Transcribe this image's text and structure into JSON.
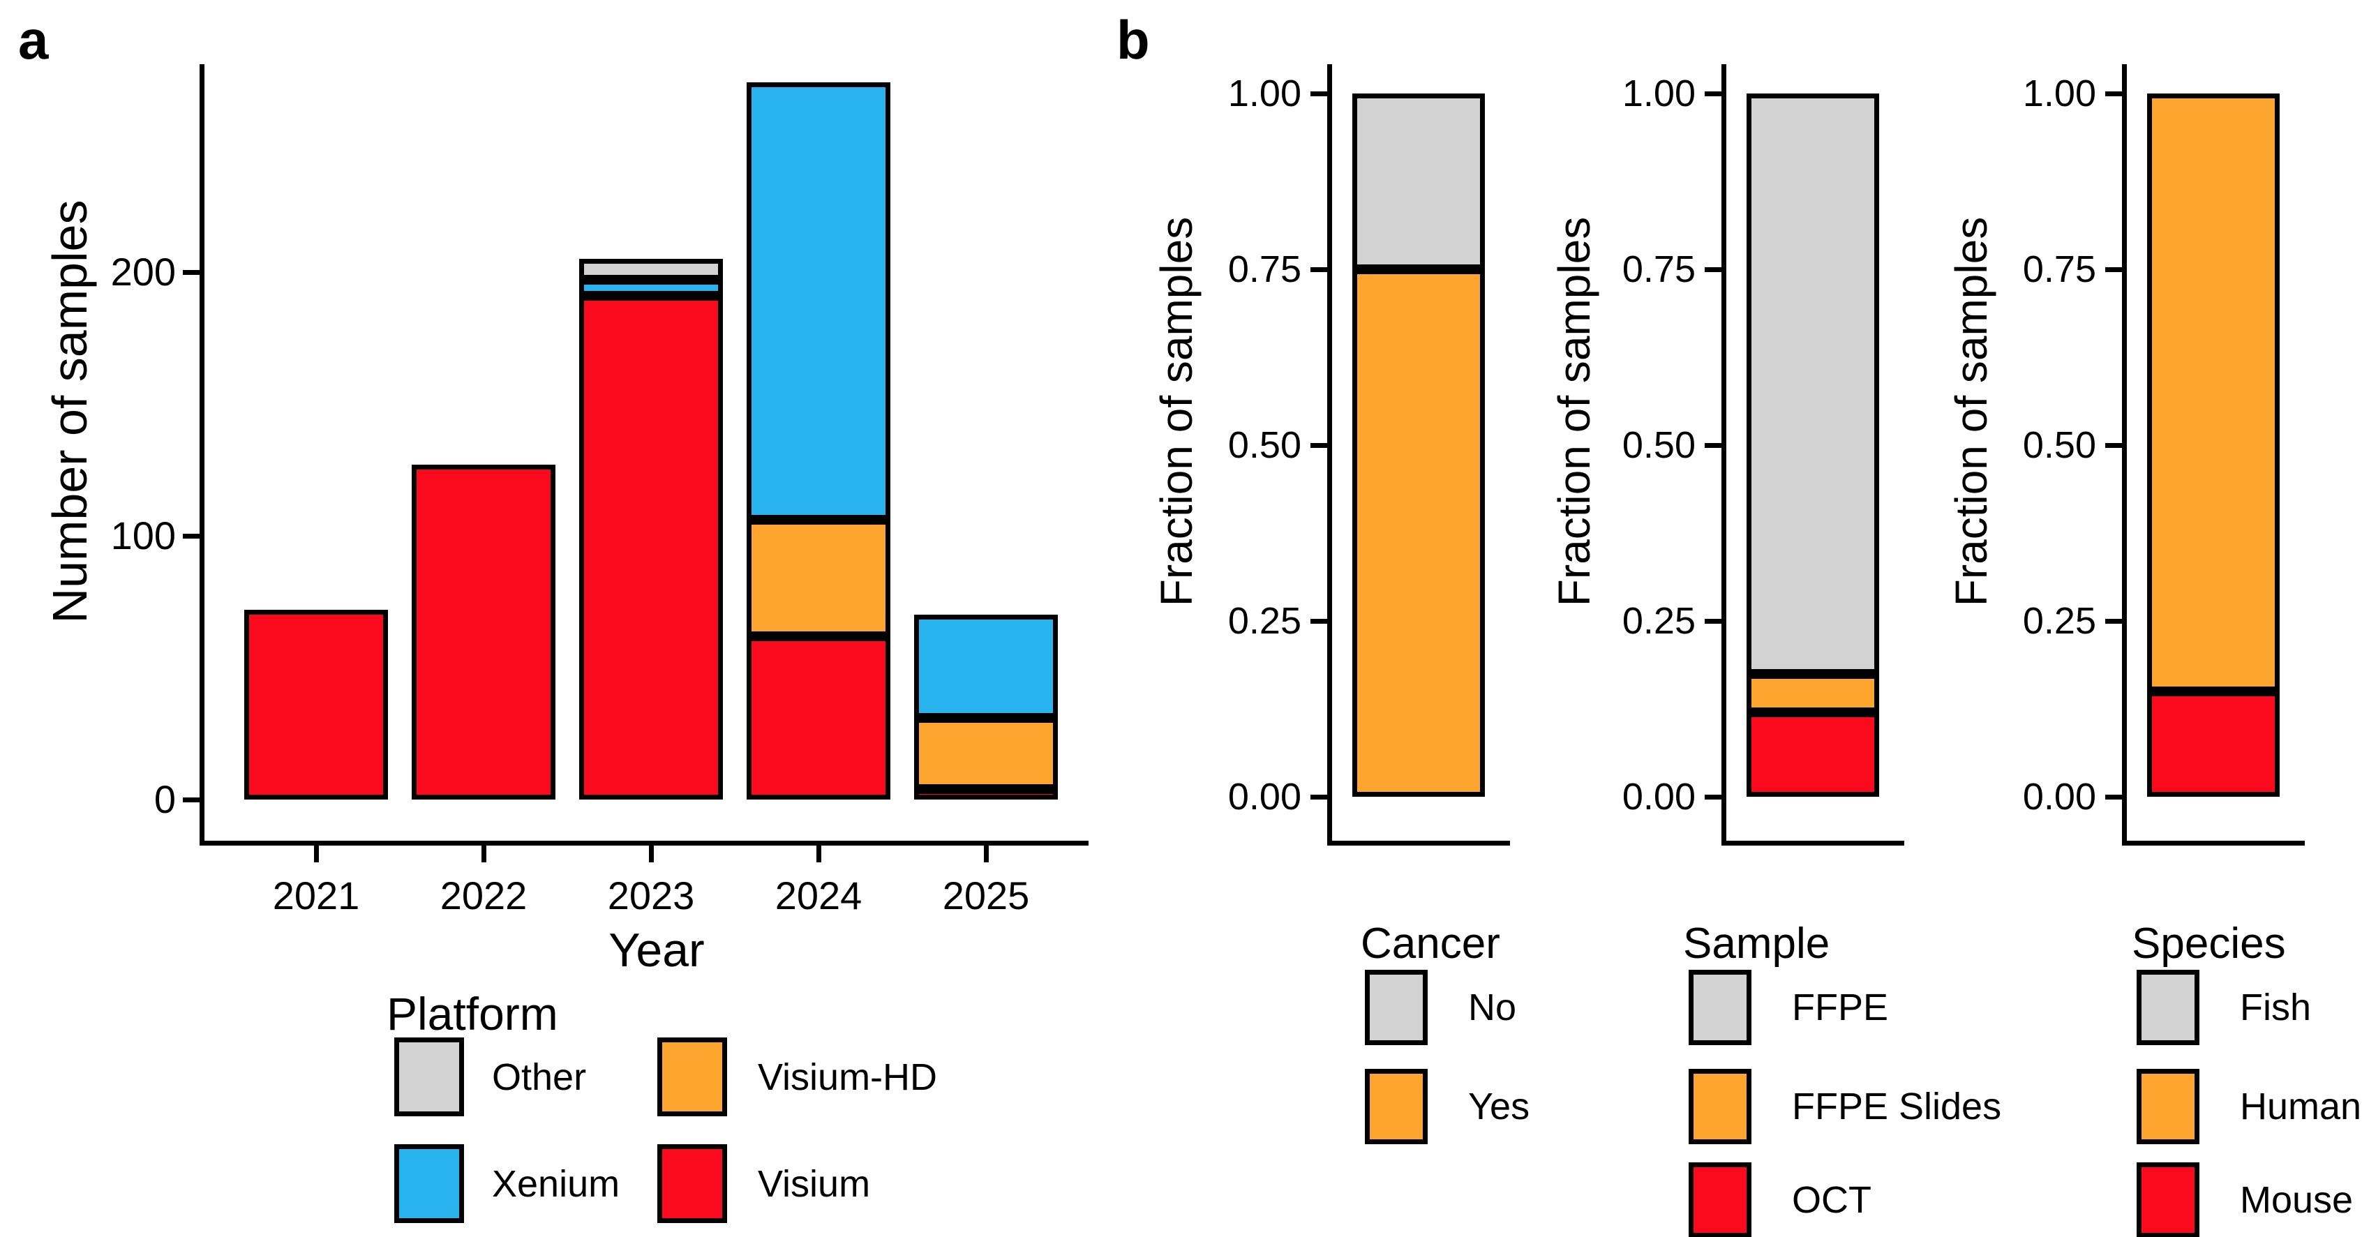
{
  "colors": {
    "red": "#FB0A1E",
    "orange": "#FDA52F",
    "blue": "#29B3EE",
    "gray": "#D2D2D2",
    "outline": "#000000",
    "background": "#FFFFFF"
  },
  "panel_a": {
    "label": "a",
    "y_axis_title": "Number of samples",
    "x_axis_title": "Year",
    "y_ticks": [
      "0",
      "100",
      "200"
    ],
    "x_ticks": [
      "2021",
      "2022",
      "2023",
      "2024",
      "2025"
    ],
    "legend": {
      "title": "Platform",
      "items": [
        {
          "label": "Other",
          "color": "gray"
        },
        {
          "label": "Visium-HD",
          "color": "orange"
        },
        {
          "label": "Xenium",
          "color": "blue"
        },
        {
          "label": "Visium",
          "color": "red"
        }
      ]
    }
  },
  "panel_b": {
    "label": "b",
    "y_axis_title": "Fraction of samples",
    "y_ticks": [
      "0.00",
      "0.25",
      "0.50",
      "0.75",
      "1.00"
    ],
    "plots": [
      {
        "name": "cancer",
        "legend_title": "Cancer",
        "legend": [
          {
            "label": "No",
            "color": "gray"
          },
          {
            "label": "Yes",
            "color": "orange"
          }
        ]
      },
      {
        "name": "sample",
        "legend_title": "Sample",
        "legend": [
          {
            "label": "FFPE",
            "color": "gray"
          },
          {
            "label": "FFPE Slides",
            "color": "orange"
          },
          {
            "label": "OCT",
            "color": "red"
          }
        ]
      },
      {
        "name": "species",
        "legend_title": "Species",
        "legend": [
          {
            "label": "Fish",
            "color": "gray"
          },
          {
            "label": "Human",
            "color": "orange"
          },
          {
            "label": "Mouse",
            "color": "red"
          }
        ]
      }
    ]
  },
  "chart_data": [
    {
      "type": "bar",
      "stacked": true,
      "title": "",
      "categories": [
        "2021",
        "2022",
        "2023",
        "2024",
        "2025"
      ],
      "series": [
        {
          "name": "Visium",
          "color_key": "red",
          "values": [
            72,
            127,
            191,
            62,
            4
          ]
        },
        {
          "name": "Visium-HD",
          "color_key": "orange",
          "values": [
            0,
            0,
            0,
            44,
            27
          ]
        },
        {
          "name": "Xenium",
          "color_key": "blue",
          "values": [
            0,
            0,
            6,
            166,
            39
          ]
        },
        {
          "name": "Other",
          "color_key": "gray",
          "values": [
            0,
            0,
            8,
            0,
            0
          ]
        }
      ],
      "xlabel": "Year",
      "ylabel": "Number of samples",
      "ylim": [
        0,
        280
      ],
      "yticks": [
        0,
        100,
        200
      ],
      "grid": false,
      "legend_title": "Platform",
      "legend_position": "bottom"
    },
    {
      "type": "bar",
      "stacked": true,
      "title": "",
      "categories": [
        "Cancer"
      ],
      "series": [
        {
          "name": "Yes",
          "color_key": "orange",
          "values": [
            0.75
          ]
        },
        {
          "name": "No",
          "color_key": "gray",
          "values": [
            0.25
          ]
        }
      ],
      "xlabel": "",
      "ylabel": "Fraction of samples",
      "ylim": [
        0,
        1
      ],
      "yticks": [
        0,
        0.25,
        0.5,
        0.75,
        1.0
      ],
      "grid": false,
      "legend_title": "Cancer",
      "legend_position": "bottom"
    },
    {
      "type": "bar",
      "stacked": true,
      "title": "",
      "categories": [
        "Sample"
      ],
      "series": [
        {
          "name": "OCT",
          "color_key": "red",
          "values": [
            0.12
          ]
        },
        {
          "name": "FFPE Slides",
          "color_key": "orange",
          "values": [
            0.055
          ]
        },
        {
          "name": "FFPE",
          "color_key": "gray",
          "values": [
            0.825
          ]
        }
      ],
      "xlabel": "",
      "ylabel": "Fraction of samples",
      "ylim": [
        0,
        1
      ],
      "yticks": [
        0,
        0.25,
        0.5,
        0.75,
        1.0
      ],
      "grid": false,
      "legend_title": "Sample",
      "legend_position": "bottom"
    },
    {
      "type": "bar",
      "stacked": true,
      "title": "",
      "categories": [
        "Species"
      ],
      "series": [
        {
          "name": "Mouse",
          "color_key": "red",
          "values": [
            0.15
          ]
        },
        {
          "name": "Human",
          "color_key": "orange",
          "values": [
            0.85
          ]
        },
        {
          "name": "Fish",
          "color_key": "gray",
          "values": [
            0.0
          ]
        }
      ],
      "xlabel": "",
      "ylabel": "Fraction of samples",
      "ylim": [
        0,
        1
      ],
      "yticks": [
        0,
        0.25,
        0.5,
        0.75,
        1.0
      ],
      "grid": false,
      "legend_title": "Species",
      "legend_position": "bottom"
    }
  ]
}
